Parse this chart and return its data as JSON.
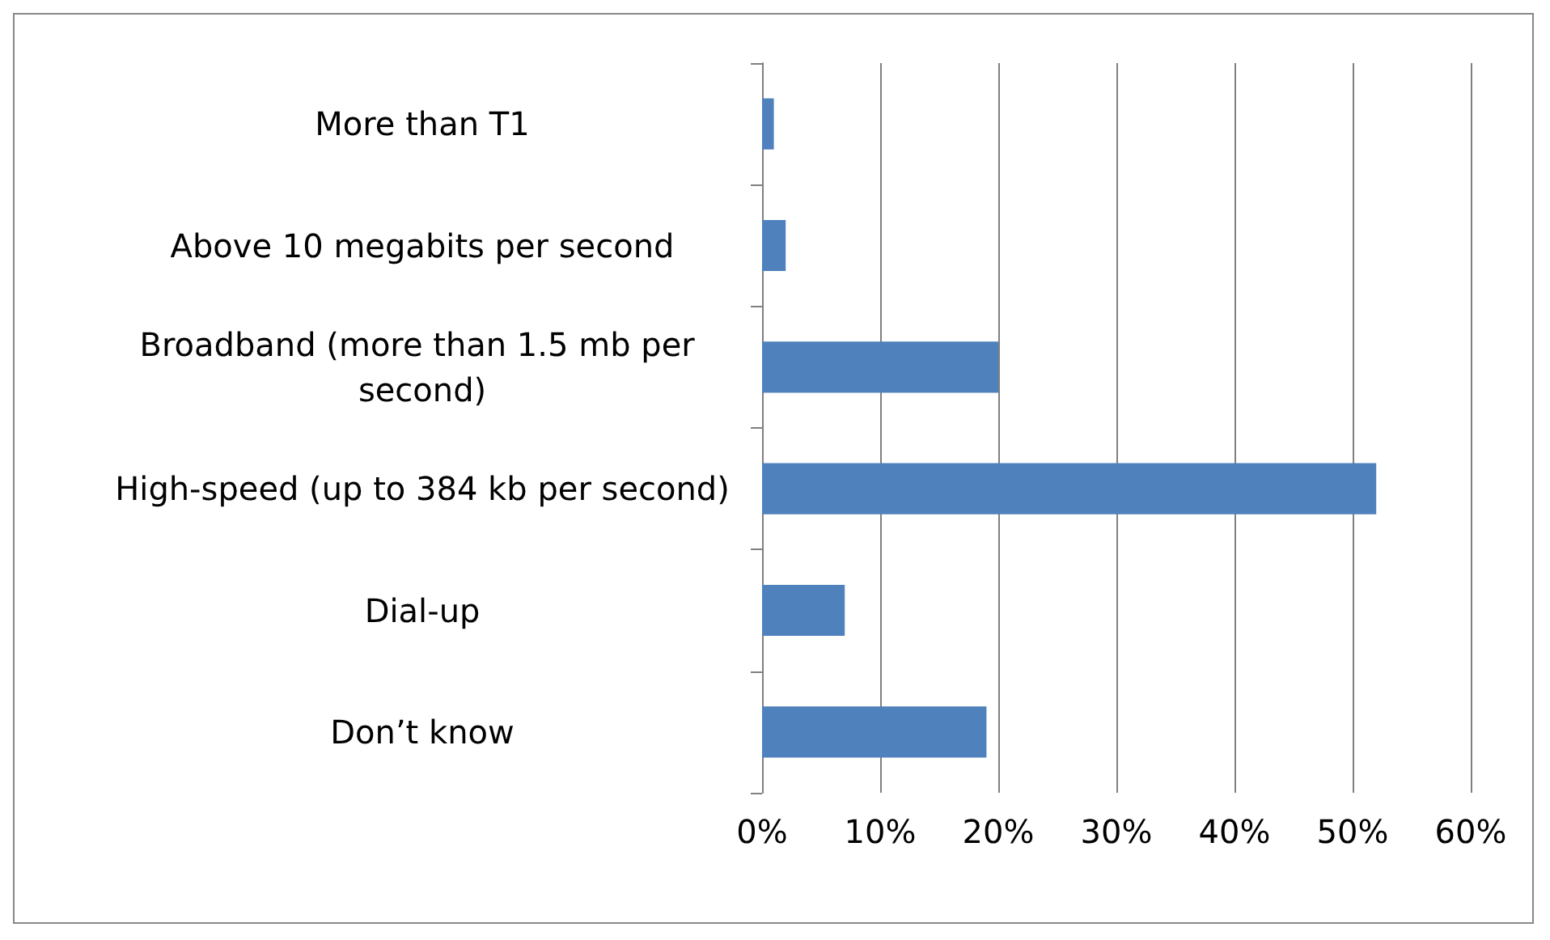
{
  "chart_data": {
    "type": "bar",
    "orientation": "horizontal",
    "categories": [
      "More than T1",
      "Above 10 megabits per second",
      "Broadband (more than 1.5 mb per second)",
      "High-speed (up to 384 kb per second)",
      "Dial-up",
      "Don’t know"
    ],
    "values": [
      1,
      2,
      20,
      52,
      7,
      19
    ],
    "color": "#4f81bd",
    "xlim": [
      0,
      60
    ],
    "xticks": [
      {
        "value": 0,
        "label": "0%"
      },
      {
        "value": 10,
        "label": "10%"
      },
      {
        "value": 20,
        "label": "20%"
      },
      {
        "value": 30,
        "label": "30%"
      },
      {
        "value": 40,
        "label": "40%"
      },
      {
        "value": 50,
        "label": "50%"
      },
      {
        "value": 60,
        "label": "60%"
      }
    ],
    "grid": "x"
  }
}
